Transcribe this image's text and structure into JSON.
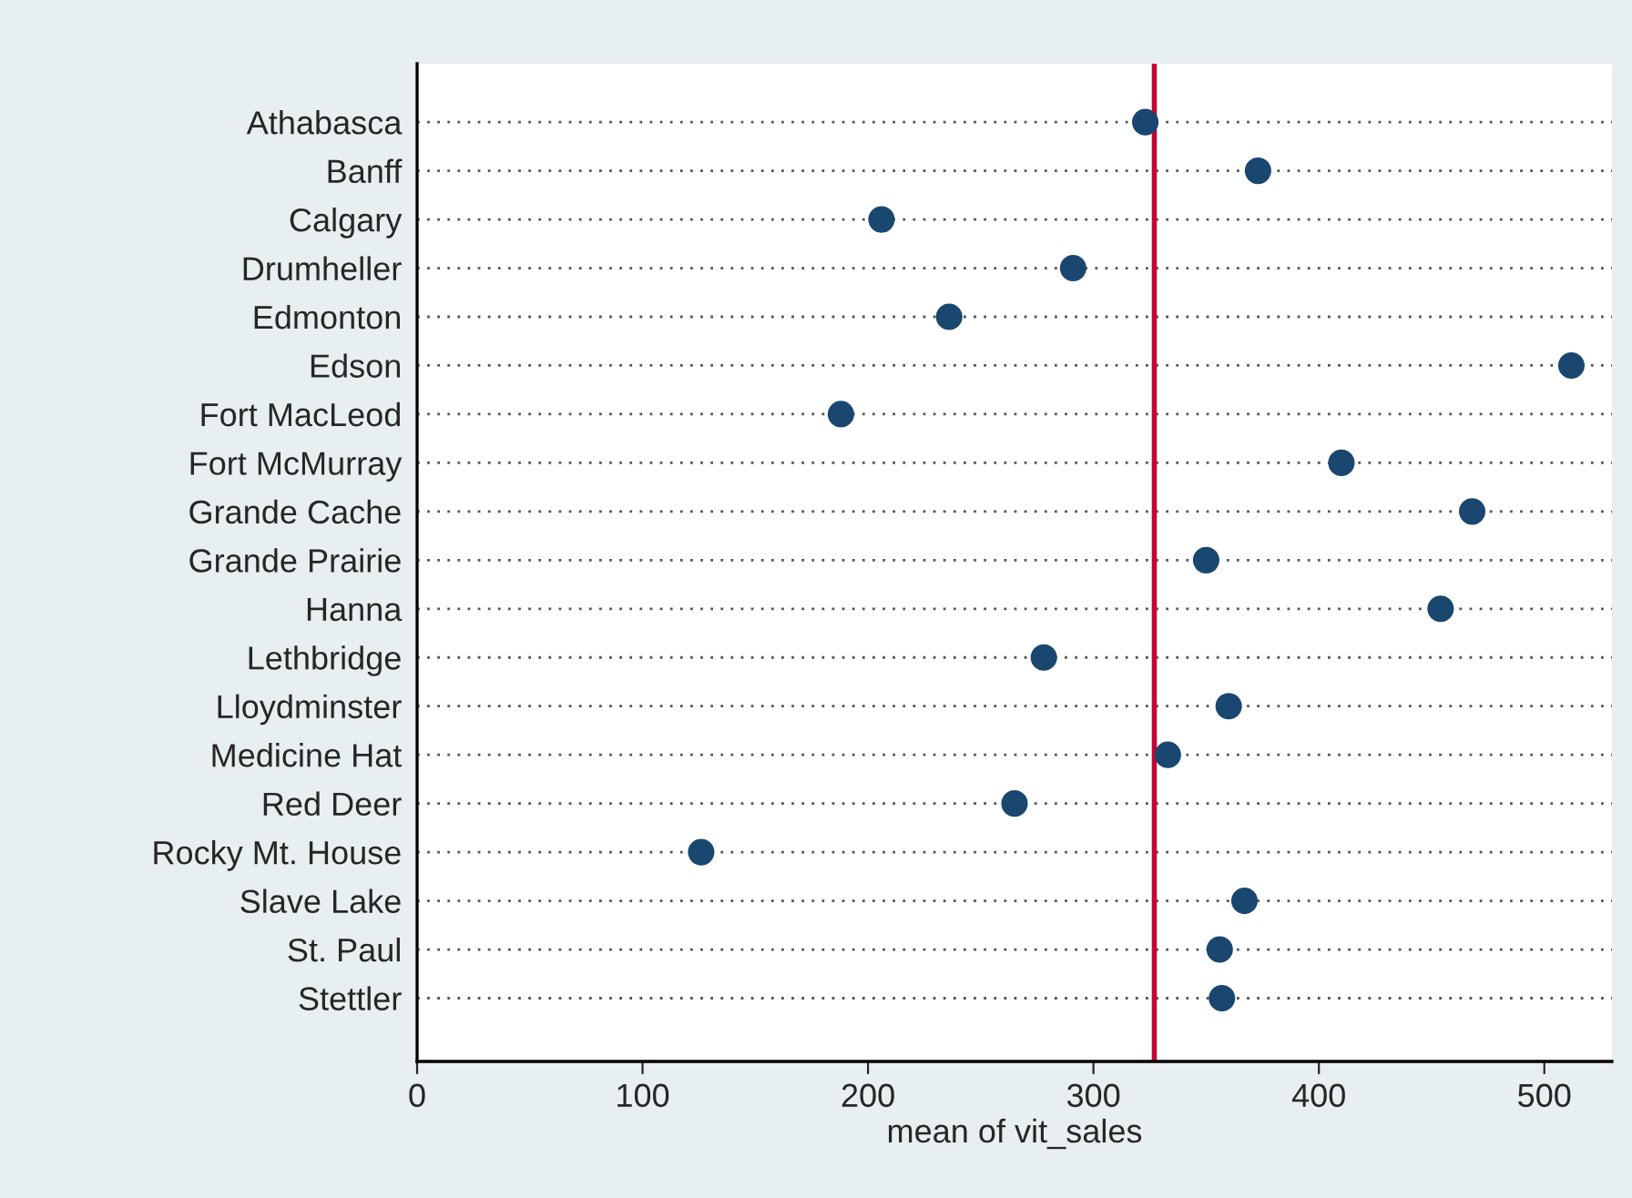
{
  "chart_data": {
    "type": "scatter",
    "orientation": "horizontal",
    "xlabel": "mean of vit_sales",
    "categories": [
      "Athabasca",
      "Banff",
      "Calgary",
      "Drumheller",
      "Edmonton",
      "Edson",
      "Fort MacLeod",
      "Fort McMurray",
      "Grande Cache",
      "Grande Prairie",
      "Hanna",
      "Lethbridge",
      "Lloydminster",
      "Medicine Hat",
      "Red Deer",
      "Rocky Mt. House",
      "Slave Lake",
      "St. Paul",
      "Stettler"
    ],
    "series": [
      {
        "color": "#1a476f",
        "values": [
          323,
          373,
          206,
          291,
          236,
          512,
          188,
          410,
          468,
          350,
          454,
          278,
          360,
          333,
          265,
          126,
          367,
          356,
          357
        ]
      }
    ],
    "xlim": [
      0,
      530
    ],
    "xticks": [
      0,
      100,
      200,
      300,
      400,
      500
    ],
    "ref_lines": [
      {
        "axis": "x",
        "value": 327,
        "color": "#c10534",
        "line_style": "solid"
      }
    ],
    "grid": "y",
    "marker": "circle",
    "legend": false
  }
}
